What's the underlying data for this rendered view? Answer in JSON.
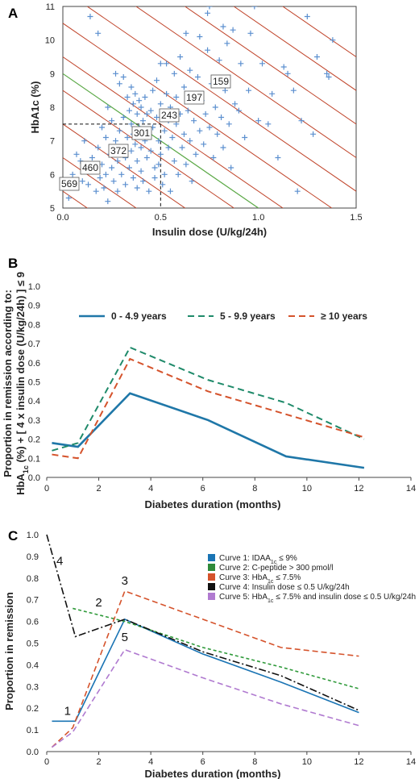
{
  "chart_data": [
    {
      "panel": "A",
      "type": "scatter",
      "xlabel": "Insulin dose (U/kg/24h)",
      "ylabel": "HbA1c  (%)",
      "xlim": [
        0,
        1.5
      ],
      "ylim": [
        5,
        11
      ],
      "xticks": [
        "0.0",
        "0.5",
        "1.0",
        "1.5"
      ],
      "yticks": [
        "5",
        "6",
        "7",
        "8",
        "9",
        "10",
        "11"
      ],
      "iso_labels": [
        "569",
        "460",
        "372",
        "301",
        "243",
        "197",
        "159"
      ],
      "iso_constants": [
        5.5,
        6.5,
        7.5,
        8.5,
        9.5,
        10.5,
        11.5,
        12.5,
        13.5,
        14.5,
        15.5
      ],
      "green_constant": 9,
      "cutoff": {
        "x": 0.5,
        "y": 7.5
      },
      "points": [
        [
          0.03,
          5.3
        ],
        [
          0.05,
          6.0
        ],
        [
          0.07,
          6.6
        ],
        [
          0.09,
          6.4
        ],
        [
          0.1,
          5.8
        ],
        [
          0.11,
          7.0
        ],
        [
          0.12,
          6.2
        ],
        [
          0.13,
          5.7
        ],
        [
          0.14,
          10.7
        ],
        [
          0.15,
          6.5
        ],
        [
          0.16,
          6.1
        ],
        [
          0.17,
          5.5
        ],
        [
          0.18,
          10.2
        ],
        [
          0.18,
          6.8
        ],
        [
          0.19,
          5.9
        ],
        [
          0.2,
          7.4
        ],
        [
          0.2,
          6.3
        ],
        [
          0.21,
          5.6
        ],
        [
          0.22,
          7.1
        ],
        [
          0.22,
          6.0
        ],
        [
          0.23,
          8.0
        ],
        [
          0.23,
          5.2
        ],
        [
          0.24,
          6.6
        ],
        [
          0.25,
          7.6
        ],
        [
          0.25,
          6.2
        ],
        [
          0.26,
          5.8
        ],
        [
          0.27,
          9.0
        ],
        [
          0.27,
          7.0
        ],
        [
          0.28,
          6.4
        ],
        [
          0.28,
          5.5
        ],
        [
          0.29,
          8.7
        ],
        [
          0.29,
          7.3
        ],
        [
          0.3,
          6.8
        ],
        [
          0.3,
          6.0
        ],
        [
          0.31,
          8.9
        ],
        [
          0.31,
          7.7
        ],
        [
          0.32,
          6.5
        ],
        [
          0.32,
          5.7
        ],
        [
          0.33,
          8.3
        ],
        [
          0.33,
          7.1
        ],
        [
          0.34,
          7.9
        ],
        [
          0.34,
          6.2
        ],
        [
          0.35,
          8.6
        ],
        [
          0.35,
          7.5
        ],
        [
          0.35,
          6.7
        ],
        [
          0.36,
          8.1
        ],
        [
          0.36,
          7.2
        ],
        [
          0.36,
          5.9
        ],
        [
          0.37,
          8.4
        ],
        [
          0.37,
          6.9
        ],
        [
          0.38,
          7.8
        ],
        [
          0.38,
          6.4
        ],
        [
          0.38,
          5.6
        ],
        [
          0.39,
          8.2
        ],
        [
          0.39,
          7.4
        ],
        [
          0.4,
          8.0
        ],
        [
          0.4,
          6.8
        ],
        [
          0.4,
          6.1
        ],
        [
          0.41,
          7.6
        ],
        [
          0.41,
          5.8
        ],
        [
          0.42,
          8.3
        ],
        [
          0.42,
          7.0
        ],
        [
          0.43,
          7.8
        ],
        [
          0.43,
          6.5
        ],
        [
          0.44,
          7.2
        ],
        [
          0.44,
          5.5
        ],
        [
          0.45,
          7.9
        ],
        [
          0.45,
          6.7
        ],
        [
          0.46,
          8.5
        ],
        [
          0.46,
          7.4
        ],
        [
          0.47,
          6.2
        ],
        [
          0.47,
          5.9
        ],
        [
          0.48,
          8.8
        ],
        [
          0.48,
          7.7
        ],
        [
          0.49,
          7.0
        ],
        [
          0.49,
          6.3
        ],
        [
          0.5,
          9.3
        ],
        [
          0.5,
          8.1
        ],
        [
          0.5,
          6.6
        ],
        [
          0.51,
          5.7
        ],
        [
          0.52,
          7.3
        ],
        [
          0.52,
          6.0
        ],
        [
          0.53,
          9.3
        ],
        [
          0.53,
          8.4
        ],
        [
          0.54,
          7.6
        ],
        [
          0.54,
          6.8
        ],
        [
          0.55,
          8.0
        ],
        [
          0.55,
          5.5
        ],
        [
          0.56,
          7.1
        ],
        [
          0.57,
          9.0
        ],
        [
          0.57,
          6.4
        ],
        [
          0.58,
          8.3
        ],
        [
          0.58,
          7.5
        ],
        [
          0.59,
          6.0
        ],
        [
          0.6,
          9.5
        ],
        [
          0.6,
          7.8
        ],
        [
          0.61,
          6.8
        ],
        [
          0.62,
          8.6
        ],
        [
          0.62,
          7.2
        ],
        [
          0.63,
          10.2
        ],
        [
          0.63,
          6.3
        ],
        [
          0.64,
          7.9
        ],
        [
          0.65,
          9.1
        ],
        [
          0.65,
          7.0
        ],
        [
          0.66,
          8.4
        ],
        [
          0.66,
          5.8
        ],
        [
          0.67,
          7.6
        ],
        [
          0.68,
          6.6
        ],
        [
          0.69,
          8.9
        ],
        [
          0.7,
          10.1
        ],
        [
          0.7,
          7.3
        ],
        [
          0.71,
          8.2
        ],
        [
          0.72,
          6.9
        ],
        [
          0.73,
          7.8
        ],
        [
          0.74,
          10.8
        ],
        [
          0.74,
          9.7
        ],
        [
          0.75,
          11.0
        ],
        [
          0.75,
          7.4
        ],
        [
          0.76,
          8.7
        ],
        [
          0.77,
          6.5
        ],
        [
          0.78,
          8.0
        ],
        [
          0.79,
          7.2
        ],
        [
          0.8,
          9.4
        ],
        [
          0.81,
          7.7
        ],
        [
          0.82,
          10.4
        ],
        [
          0.82,
          6.8
        ],
        [
          0.83,
          8.5
        ],
        [
          0.84,
          9.9
        ],
        [
          0.85,
          7.5
        ],
        [
          0.86,
          6.2
        ],
        [
          0.87,
          10.3
        ],
        [
          0.88,
          8.1
        ],
        [
          0.9,
          7.9
        ],
        [
          0.91,
          9.3
        ],
        [
          0.93,
          7.1
        ],
        [
          0.95,
          8.5
        ],
        [
          0.96,
          10.2
        ],
        [
          0.98,
          11.0
        ],
        [
          1.0,
          7.6
        ],
        [
          1.02,
          9.3
        ],
        [
          1.05,
          7.5
        ],
        [
          1.07,
          8.4
        ],
        [
          1.1,
          6.5
        ],
        [
          1.13,
          9.2
        ],
        [
          1.15,
          9.0
        ],
        [
          1.18,
          8.5
        ],
        [
          1.2,
          5.5
        ],
        [
          1.22,
          7.6
        ],
        [
          1.25,
          10.7
        ],
        [
          1.28,
          7.2
        ],
        [
          1.3,
          9.5
        ],
        [
          1.35,
          9.0
        ],
        [
          1.36,
          8.9
        ],
        [
          1.38,
          10.0
        ]
      ]
    },
    {
      "panel": "B",
      "type": "line",
      "xlabel": "Diabetes duration (months)",
      "ylabel_line1": "Proportion in remission according to:",
      "ylabel_pre": "HbA",
      "ylabel_sub": "1c",
      "ylabel_post": " (%) + [ 4 x insulin dose (U/kg/24h) ] ≤ 9",
      "xlim": [
        0,
        14
      ],
      "ylim": [
        0,
        1
      ],
      "xticks": [
        "0",
        "2",
        "4",
        "6",
        "8",
        "10",
        "12",
        "14"
      ],
      "yticks": [
        "0.0",
        "0.1",
        "0.2",
        "0.3",
        "0.4",
        "0.5",
        "0.6",
        "0.7",
        "0.8",
        "0.9",
        "1.0"
      ],
      "series": [
        {
          "name": "0 - 4.9 years",
          "color": "#1f77a8",
          "dash": "",
          "x": [
            0.2,
            1.2,
            3.2,
            6.2,
            9.2,
            12.2
          ],
          "values": [
            0.18,
            0.16,
            0.44,
            0.3,
            0.11,
            0.05
          ]
        },
        {
          "name": "5 - 9.9 years",
          "color": "#1f8a6a",
          "dash": "8,5",
          "x": [
            0.2,
            1.2,
            3.2,
            6.2,
            9.2,
            12.2
          ],
          "values": [
            0.14,
            0.18,
            0.68,
            0.51,
            0.39,
            0.2
          ]
        },
        {
          "name": "≥ 10 years",
          "color": "#d5532c",
          "dash": "8,5",
          "x": [
            0.2,
            1.2,
            3.2,
            6.2,
            9.2,
            12.2
          ],
          "values": [
            0.12,
            0.1,
            0.62,
            0.45,
            0.33,
            0.21
          ]
        }
      ]
    },
    {
      "panel": "C",
      "type": "line",
      "xlabel": "Diabetes  duration  (months)",
      "ylabel": "Proportion in remission",
      "xlim": [
        0,
        14
      ],
      "ylim": [
        0,
        1
      ],
      "xticks": [
        "0",
        "2",
        "4",
        "6",
        "8",
        "10",
        "12",
        "14"
      ],
      "yticks": [
        "0.0",
        "0.1",
        "0.2",
        "0.3",
        "0.4",
        "0.5",
        "0.6",
        "0.7",
        "0.8",
        "0.9",
        "1.0"
      ],
      "legend": [
        {
          "pre": "Curve 1: IDAA",
          "sub": "1c",
          "post": " ≤ 9%",
          "color": "#1a74b4"
        },
        {
          "pre": "Curve 2: C-peptide > 300 pmol/l",
          "sub": "",
          "post": "",
          "color": "#2f8a3a"
        },
        {
          "pre": "Curve 3: HbA",
          "sub": "1c",
          "post": " ≤ 7.5%",
          "color": "#d5532c"
        },
        {
          "pre": "Curve 4: Insulin dose ≤ 0.5 U/kg/24h",
          "sub": "",
          "post": "",
          "color": "#111111"
        },
        {
          "pre": "Curve 5: HbA",
          "sub": "1c",
          "post": " ≤ 7.5% and insulin dose ≤ 0.5 U/kg/24h",
          "color": "#b07ad0"
        }
      ],
      "series": [
        {
          "name": "1",
          "color": "#1a74b4",
          "dash": "",
          "x": [
            0.2,
            1.1,
            3.0,
            6.0,
            9.0,
            12.0
          ],
          "values": [
            0.14,
            0.14,
            0.61,
            0.45,
            0.32,
            0.18
          ],
          "labelAt": [
            0.8,
            0.17
          ]
        },
        {
          "name": "2",
          "color": "#2f9a3a",
          "dash": "4,3",
          "x": [
            1.0,
            3.0,
            6.0,
            9.0,
            12.0
          ],
          "values": [
            0.66,
            0.6,
            0.48,
            0.39,
            0.29
          ],
          "labelAt": [
            2.0,
            0.67
          ]
        },
        {
          "name": "3",
          "color": "#d5532c",
          "dash": "7,4",
          "x": [
            0.2,
            1.0,
            3.0,
            6.0,
            9.0,
            12.0
          ],
          "values": [
            0.02,
            0.11,
            0.74,
            0.61,
            0.48,
            0.44
          ],
          "labelAt": [
            3.0,
            0.77
          ]
        },
        {
          "name": "4",
          "color": "#111111",
          "dash": "9,3,2,3",
          "x": [
            0.0,
            1.1,
            3.0,
            6.0,
            9.0,
            12.0
          ],
          "values": [
            1.0,
            0.53,
            0.61,
            0.46,
            0.35,
            0.19
          ],
          "labelAt": [
            0.5,
            0.86
          ]
        },
        {
          "name": "5",
          "color": "#b07ad0",
          "dash": "7,4",
          "x": [
            0.2,
            1.0,
            3.0,
            6.0,
            9.0,
            12.0
          ],
          "values": [
            0.02,
            0.09,
            0.47,
            0.34,
            0.22,
            0.12
          ],
          "labelAt": [
            3.0,
            0.51
          ]
        }
      ]
    }
  ]
}
